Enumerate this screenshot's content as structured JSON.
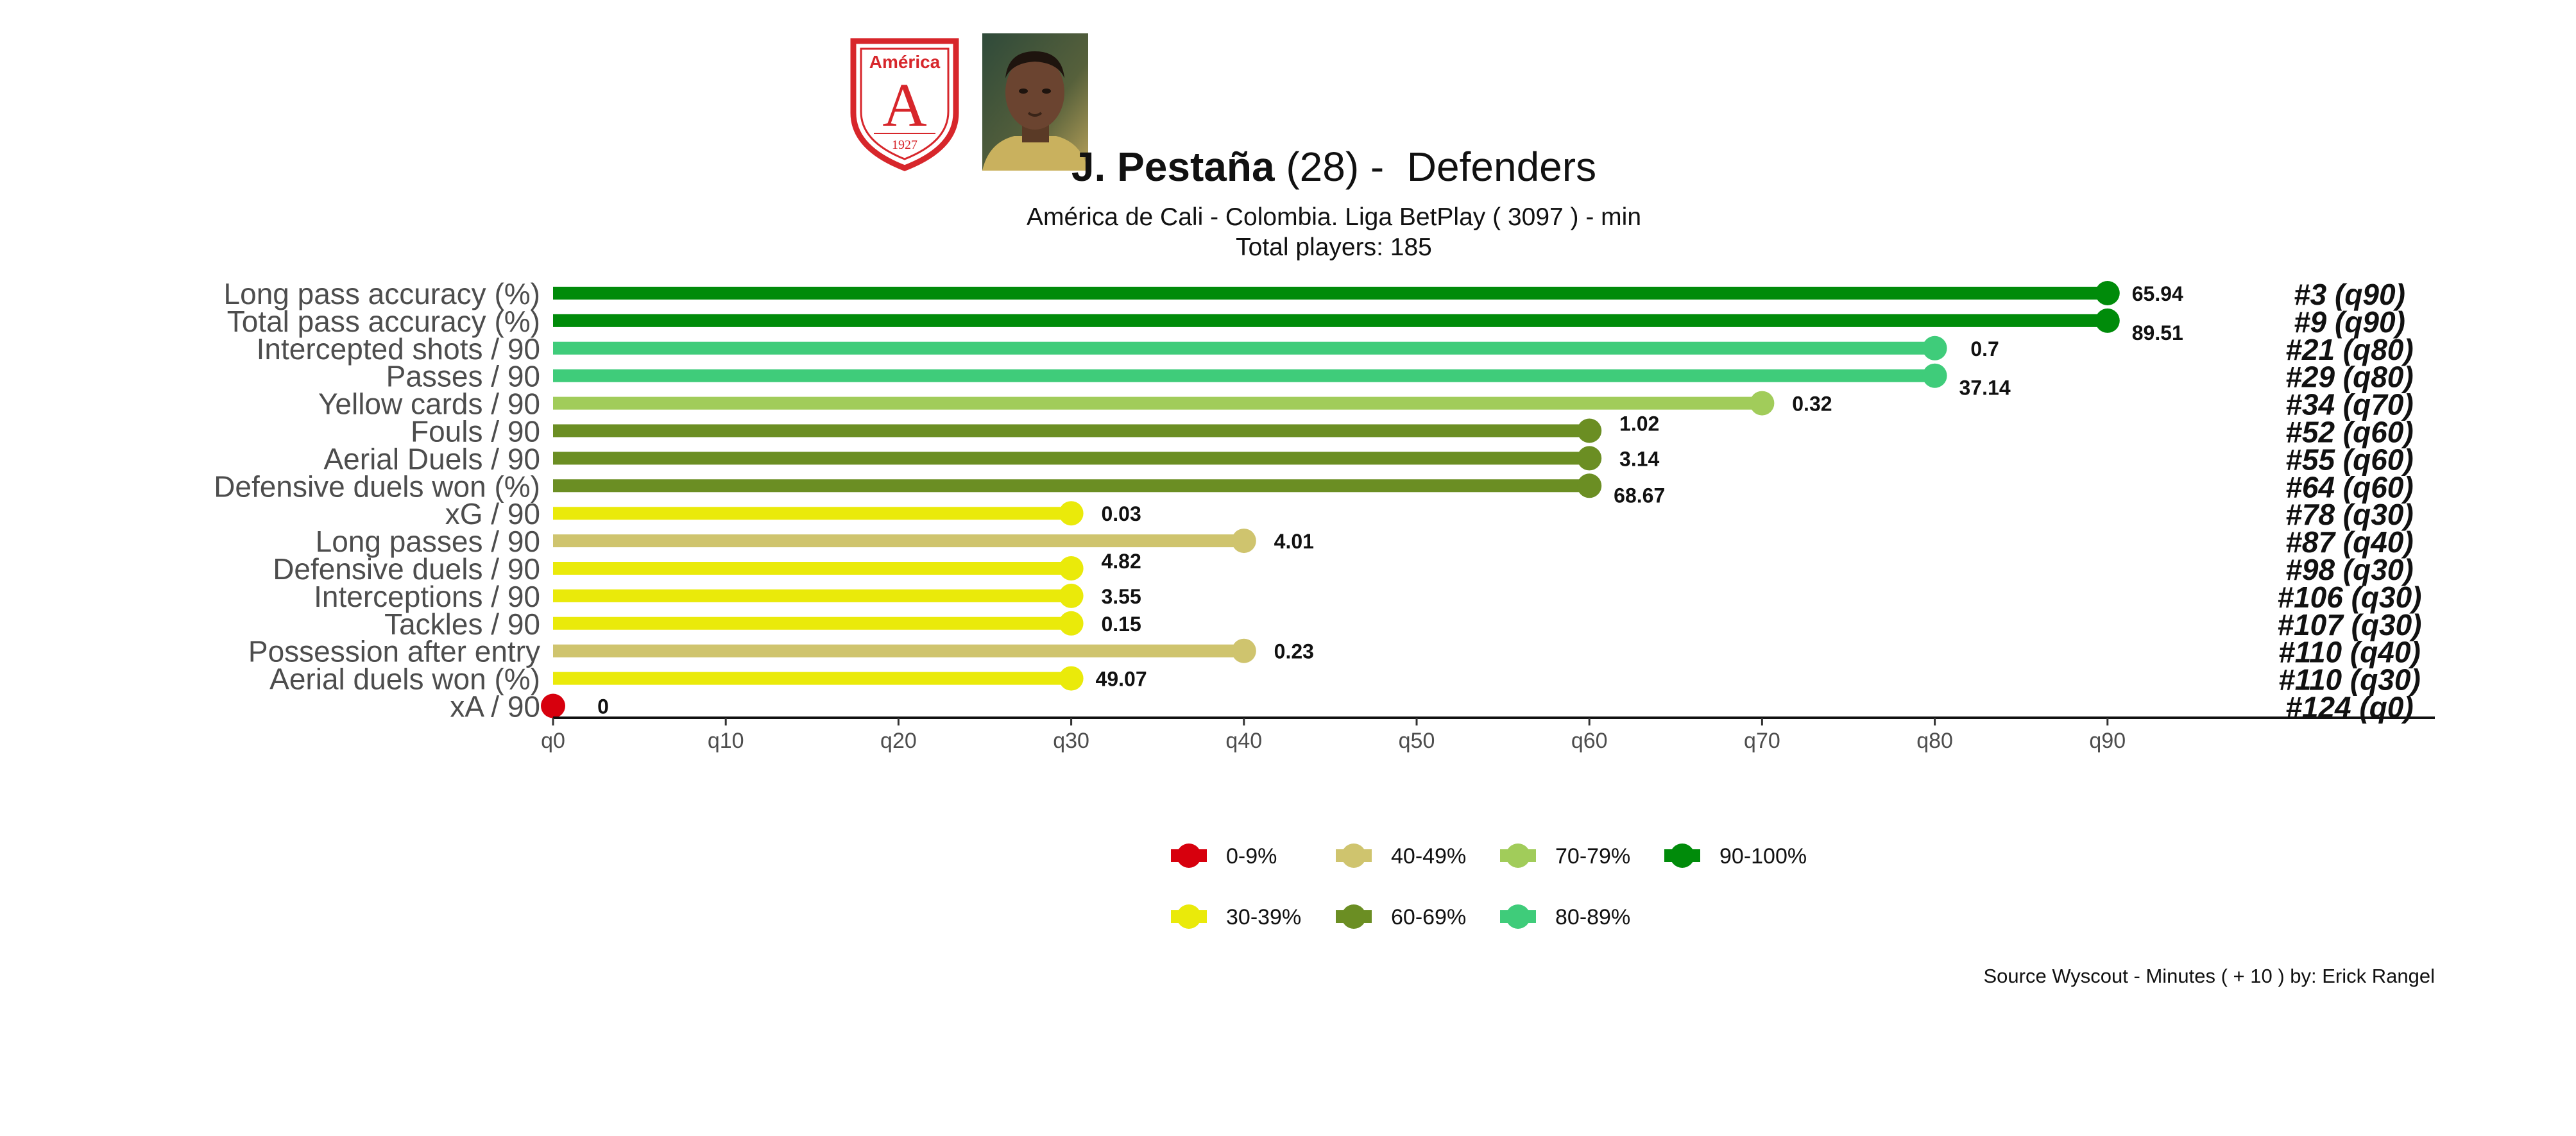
{
  "header": {
    "player_name": "J. Pestaña",
    "age_role": " (28) -  Defenders",
    "subtitle_line1": "América de Cali  -  Colombia. Liga BetPlay  ( 3097 ) - min",
    "subtitle_line2": "Total players:  185"
  },
  "crest": {
    "club_text": "América",
    "letter": "A",
    "year": "1927",
    "color": "#d7262b"
  },
  "caption": "Source Wyscout - Minutes ( + 10 ) by: Erick Rangel",
  "colors": {
    "0-9%": "#d7000d",
    "30-39%": "#eaea0a",
    "40-49%": "#cfc46e",
    "60-69%": "#6b8e23",
    "70-79%": "#a1cc5a",
    "80-89%": "#3fcc7a",
    "90-100%": "#008b0a"
  },
  "legend": {
    "row1": [
      "0-9%",
      "40-49%",
      "70-79%",
      "90-100%"
    ],
    "row2": [
      "30-39%",
      "60-69%",
      "80-89%"
    ]
  },
  "chart_data": {
    "type": "lollipop",
    "xlim": [
      0,
      100
    ],
    "x_ticks": [
      "q0",
      "q10",
      "q20",
      "q30",
      "q40",
      "q50",
      "q60",
      "q70",
      "q80",
      "q90"
    ],
    "grid": false,
    "legend_position": "bottom",
    "rows": [
      {
        "metric": "Long pass accuracy (%)",
        "quantile": 90,
        "value": "65.94",
        "rank": "#3 (q90)",
        "group": "90-100%"
      },
      {
        "metric": "Total pass accuracy (%)",
        "quantile": 90,
        "value": "89.51",
        "rank": "#9 (q90)",
        "group": "90-100%"
      },
      {
        "metric": "Intercepted shots / 90",
        "quantile": 80,
        "value": "0.7",
        "rank": "#21 (q80)",
        "group": "80-89%"
      },
      {
        "metric": "Passes / 90",
        "quantile": 80,
        "value": "37.14",
        "rank": "#29 (q80)",
        "group": "80-89%"
      },
      {
        "metric": "Yellow cards / 90",
        "quantile": 70,
        "value": "0.32",
        "rank": "#34 (q70)",
        "group": "70-79%"
      },
      {
        "metric": "Fouls / 90",
        "quantile": 60,
        "value": "1.02",
        "rank": "#52 (q60)",
        "group": "60-69%"
      },
      {
        "metric": "Aerial Duels / 90",
        "quantile": 60,
        "value": "3.14",
        "rank": "#55 (q60)",
        "group": "60-69%"
      },
      {
        "metric": "Defensive duels won (%)",
        "quantile": 60,
        "value": "68.67",
        "rank": "#64 (q60)",
        "group": "60-69%"
      },
      {
        "metric": "xG / 90",
        "quantile": 30,
        "value": "0.03",
        "rank": "#78 (q30)",
        "group": "30-39%"
      },
      {
        "metric": "Long passes / 90",
        "quantile": 40,
        "value": "4.01",
        "rank": "#87 (q40)",
        "group": "40-49%"
      },
      {
        "metric": "Defensive duels / 90",
        "quantile": 30,
        "value": "4.82",
        "rank": "#98 (q30)",
        "group": "30-39%"
      },
      {
        "metric": "Interceptions / 90",
        "quantile": 30,
        "value": "3.55",
        "rank": "#106 (q30)",
        "group": "30-39%"
      },
      {
        "metric": "Tackles / 90",
        "quantile": 30,
        "value": "0.15",
        "rank": "#107 (q30)",
        "group": "30-39%"
      },
      {
        "metric": "Possession after entry",
        "quantile": 40,
        "value": "0.23",
        "rank": "#110 (q40)",
        "group": "40-49%"
      },
      {
        "metric": "Aerial duels won (%)",
        "quantile": 30,
        "value": "49.07",
        "rank": "#110 (q30)",
        "group": "30-39%"
      },
      {
        "metric": "xA / 90",
        "quantile": 0,
        "value": "0",
        "rank": "#124 (q0)",
        "group": "0-9%"
      }
    ]
  }
}
